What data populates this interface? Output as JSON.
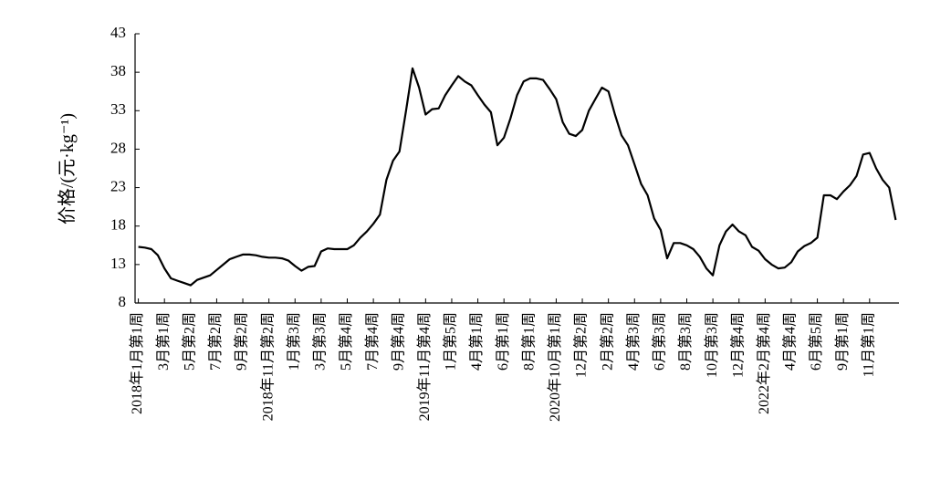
{
  "chart_data": {
    "type": "line",
    "y_label": "价格/(元·kg⁻¹)",
    "categories": [
      "2018年1月第1周",
      null,
      null,
      null,
      "3月第1周",
      null,
      null,
      null,
      "5月第2周",
      null,
      null,
      null,
      "7月第2周",
      null,
      null,
      null,
      "9月第2周",
      null,
      null,
      null,
      "2018年11月第2周",
      null,
      null,
      null,
      "1月第3周",
      null,
      null,
      null,
      "3月第3周",
      null,
      null,
      null,
      "5月第4周",
      null,
      null,
      null,
      "7月第4周",
      null,
      null,
      null,
      "9月第4周",
      null,
      null,
      null,
      "2019年11月第4周",
      null,
      null,
      null,
      "1月第5周",
      null,
      null,
      null,
      "4月第1周",
      null,
      null,
      null,
      "6月第1周",
      null,
      null,
      null,
      "8月第1周",
      null,
      null,
      null,
      "2020年10月第1周",
      null,
      null,
      null,
      "12月第2周",
      null,
      null,
      null,
      "2月第2周",
      null,
      null,
      null,
      "4月第3周",
      null,
      null,
      null,
      "6月第3周",
      null,
      null,
      null,
      "8月第3周",
      null,
      null,
      null,
      "10月第3周",
      null,
      null,
      null,
      "12月第4周",
      null,
      null,
      null,
      "2022年2月第4周",
      null,
      null,
      null,
      "4月第4周",
      null,
      null,
      null,
      "6月第5周",
      null,
      null,
      null,
      "9月第1周",
      null,
      null,
      null,
      "11月第1周",
      null,
      null,
      null,
      null
    ],
    "values": [
      15.3,
      15.2,
      15.0,
      14.2,
      12.5,
      11.2,
      10.9,
      10.6,
      10.3,
      11.0,
      11.3,
      11.6,
      12.3,
      13.0,
      13.7,
      14.0,
      14.3,
      14.3,
      14.2,
      14.0,
      13.9,
      13.9,
      13.8,
      13.5,
      12.8,
      12.2,
      12.7,
      12.8,
      14.7,
      15.1,
      15.0,
      15.0,
      15.0,
      15.5,
      16.5,
      17.3,
      18.3,
      19.5,
      24.0,
      26.5,
      27.7,
      33.0,
      38.5,
      36.0,
      32.5,
      33.2,
      33.3,
      35.0,
      36.3,
      37.5,
      36.8,
      36.3,
      35.0,
      33.8,
      32.8,
      28.5,
      29.5,
      32.0,
      35.0,
      36.8,
      37.2,
      37.2,
      37.0,
      35.8,
      34.5,
      31.5,
      30.0,
      29.7,
      30.5,
      33.0,
      34.5,
      36.0,
      35.5,
      32.5,
      29.8,
      28.5,
      26.0,
      23.5,
      22.0,
      19.0,
      17.5,
      13.8,
      15.8,
      15.8,
      15.5,
      15.0,
      14.0,
      12.5,
      11.6,
      15.5,
      17.3,
      18.2,
      17.3,
      16.8,
      15.3,
      14.8,
      13.7,
      13.0,
      12.5,
      12.6,
      13.3,
      14.7,
      15.4,
      15.8,
      16.5,
      22.0,
      22.0,
      21.5,
      22.5,
      23.3,
      24.5,
      27.3,
      27.5,
      25.5,
      24.0,
      23.0,
      18.8
    ],
    "color": "#000000",
    "ylim": [
      8,
      43
    ],
    "yticks": [
      8,
      13,
      18,
      23,
      28,
      33,
      38,
      43
    ],
    "grid": false
  }
}
